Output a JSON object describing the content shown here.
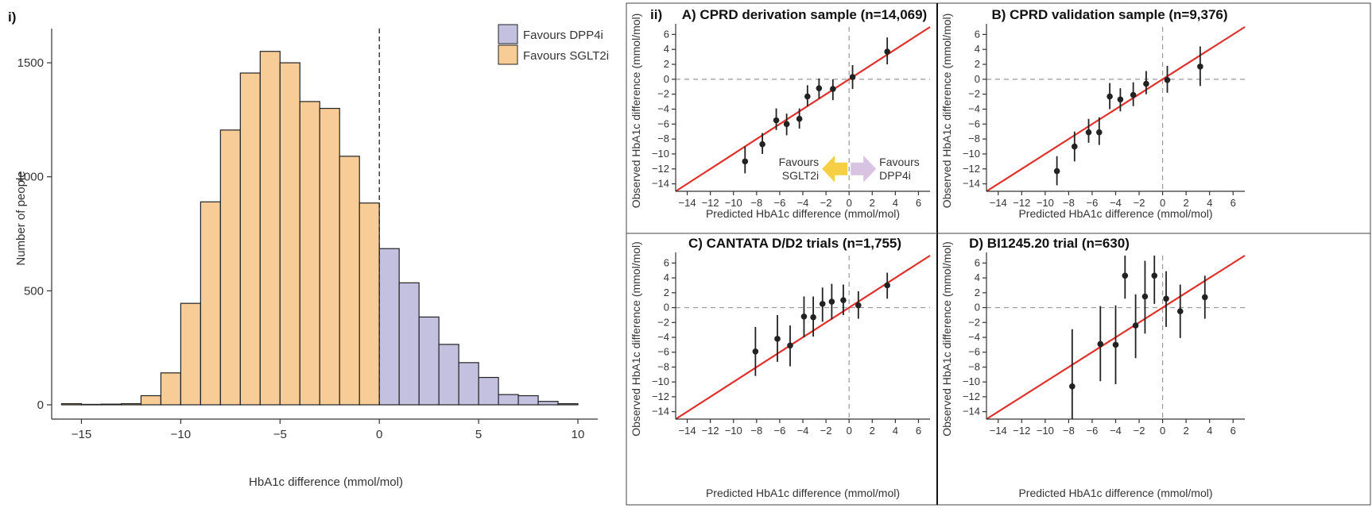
{
  "chart_data": [
    {
      "type": "bar",
      "id": "histogram",
      "panel_label": "i)",
      "xlabel": "HbA1c difference (mmol/mol)",
      "ylabel": "Number of people",
      "xlim": [
        -16.5,
        11
      ],
      "ylim": [
        0,
        1650
      ],
      "xticks": [
        -15,
        -10,
        -5,
        0,
        5,
        10
      ],
      "yticks": [
        0,
        500,
        1000,
        1500
      ],
      "bin_width": 1,
      "reference_line_x": 0,
      "colors": {
        "favours_sglt2i": "#f8cc96",
        "favours_dpp4i": "#c3c0e0",
        "edge": "#222222"
      },
      "legend": [
        {
          "label": "Favours DPP4i",
          "color": "#c3c0e0"
        },
        {
          "label": "Favours SGLT2i",
          "color": "#f8cc96"
        }
      ],
      "legend_position": "top-right",
      "bins": [
        {
          "x0": -16,
          "x1": -15,
          "value": 5,
          "group": "sglt2i"
        },
        {
          "x0": -15,
          "x1": -14,
          "value": 2,
          "group": "sglt2i"
        },
        {
          "x0": -14,
          "x1": -13,
          "value": 3,
          "group": "sglt2i"
        },
        {
          "x0": -13,
          "x1": -12,
          "value": 5,
          "group": "sglt2i"
        },
        {
          "x0": -12,
          "x1": -11,
          "value": 40,
          "group": "sglt2i"
        },
        {
          "x0": -11,
          "x1": -10,
          "value": 140,
          "group": "sglt2i"
        },
        {
          "x0": -10,
          "x1": -9,
          "value": 445,
          "group": "sglt2i"
        },
        {
          "x0": -9,
          "x1": -8,
          "value": 890,
          "group": "sglt2i"
        },
        {
          "x0": -8,
          "x1": -7,
          "value": 1205,
          "group": "sglt2i"
        },
        {
          "x0": -7,
          "x1": -6,
          "value": 1455,
          "group": "sglt2i"
        },
        {
          "x0": -6,
          "x1": -5,
          "value": 1550,
          "group": "sglt2i"
        },
        {
          "x0": -5,
          "x1": -4,
          "value": 1500,
          "group": "sglt2i"
        },
        {
          "x0": -4,
          "x1": -3,
          "value": 1330,
          "group": "sglt2i"
        },
        {
          "x0": -3,
          "x1": -2,
          "value": 1300,
          "group": "sglt2i"
        },
        {
          "x0": -2,
          "x1": -1,
          "value": 1090,
          "group": "sglt2i"
        },
        {
          "x0": -1,
          "x1": 0,
          "value": 885,
          "group": "sglt2i"
        },
        {
          "x0": 0,
          "x1": 1,
          "value": 685,
          "group": "dpp4i"
        },
        {
          "x0": 1,
          "x1": 2,
          "value": 535,
          "group": "dpp4i"
        },
        {
          "x0": 2,
          "x1": 3,
          "value": 385,
          "group": "dpp4i"
        },
        {
          "x0": 3,
          "x1": 4,
          "value": 265,
          "group": "dpp4i"
        },
        {
          "x0": 4,
          "x1": 5,
          "value": 185,
          "group": "dpp4i"
        },
        {
          "x0": 5,
          "x1": 6,
          "value": 120,
          "group": "dpp4i"
        },
        {
          "x0": 6,
          "x1": 7,
          "value": 45,
          "group": "dpp4i"
        },
        {
          "x0": 7,
          "x1": 8,
          "value": 40,
          "group": "dpp4i"
        },
        {
          "x0": 8,
          "x1": 9,
          "value": 15,
          "group": "dpp4i"
        },
        {
          "x0": 9,
          "x1": 10,
          "value": 5,
          "group": "dpp4i"
        }
      ]
    },
    {
      "type": "scatter",
      "id": "panel-a",
      "panel_label": "ii)",
      "title": "A) CPRD derivation sample (n=14,069)",
      "xlabel": "Predicted HbA1c difference (mmol/mol)",
      "ylabel": "Observed HbA1c difference (mmol/mol)",
      "xlim": [
        -15,
        7
      ],
      "ylim": [
        -15,
        7
      ],
      "ticks": [
        -14,
        -12,
        -10,
        -8,
        -6,
        -4,
        -2,
        0,
        2,
        4,
        6
      ],
      "identity_line": true,
      "annotation": {
        "left_label": [
          "Favours",
          "SGLT2i"
        ],
        "right_label": [
          "Favours",
          "DPP4i"
        ],
        "left_color": "#f6cf45",
        "right_color": "#d8c4e2"
      },
      "points": [
        {
          "x": -9.0,
          "y": -11.0,
          "lo": -12.6,
          "hi": -9.0
        },
        {
          "x": -7.5,
          "y": -8.7,
          "lo": -10.0,
          "hi": -7.2
        },
        {
          "x": -6.3,
          "y": -5.5,
          "lo": -6.8,
          "hi": -3.9
        },
        {
          "x": -5.4,
          "y": -6.0,
          "lo": -7.5,
          "hi": -4.6
        },
        {
          "x": -4.3,
          "y": -5.3,
          "lo": -6.6,
          "hi": -3.9
        },
        {
          "x": -3.6,
          "y": -2.3,
          "lo": -3.6,
          "hi": -0.8
        },
        {
          "x": -2.6,
          "y": -1.2,
          "lo": -2.6,
          "hi": 0.1
        },
        {
          "x": -1.4,
          "y": -1.3,
          "lo": -2.8,
          "hi": 0.0
        },
        {
          "x": 0.3,
          "y": 0.3,
          "lo": -1.3,
          "hi": 1.9
        },
        {
          "x": 3.3,
          "y": 3.7,
          "lo": 2.0,
          "hi": 5.6
        }
      ]
    },
    {
      "type": "scatter",
      "id": "panel-b",
      "title": "B) CPRD validation sample (n=9,376)",
      "xlabel": "Predicted HbA1c difference (mmol/mol)",
      "ylabel": "Observed HbA1c difference (mmol/mol)",
      "xlim": [
        -15,
        7
      ],
      "ylim": [
        -15,
        7
      ],
      "ticks": [
        -14,
        -12,
        -10,
        -8,
        -6,
        -4,
        -2,
        0,
        2,
        4,
        6
      ],
      "identity_line": true,
      "points": [
        {
          "x": -9.0,
          "y": -12.3,
          "lo": -14.2,
          "hi": -10.3
        },
        {
          "x": -7.5,
          "y": -9.0,
          "lo": -11.0,
          "hi": -7.0
        },
        {
          "x": -6.3,
          "y": -7.1,
          "lo": -8.5,
          "hi": -5.3
        },
        {
          "x": -5.4,
          "y": -7.1,
          "lo": -8.8,
          "hi": -5.1
        },
        {
          "x": -4.5,
          "y": -2.3,
          "lo": -4.0,
          "hi": -0.5
        },
        {
          "x": -3.6,
          "y": -2.7,
          "lo": -4.3,
          "hi": -1.2
        },
        {
          "x": -2.5,
          "y": -2.1,
          "lo": -3.6,
          "hi": -0.4
        },
        {
          "x": -1.4,
          "y": -0.6,
          "lo": -2.0,
          "hi": 1.1
        },
        {
          "x": 0.4,
          "y": -0.1,
          "lo": -1.8,
          "hi": 1.8
        },
        {
          "x": 3.2,
          "y": 1.7,
          "lo": -0.9,
          "hi": 4.4
        }
      ]
    },
    {
      "type": "scatter",
      "id": "panel-c",
      "title": "C) CANTATA D/D2 trials (n=1,755)",
      "xlabel": "Predicted HbA1c difference (mmol/mol)",
      "ylabel": "Observed HbA1c difference (mmol/mol)",
      "xlim": [
        -15,
        7
      ],
      "ylim": [
        -15,
        7
      ],
      "ticks": [
        -14,
        -12,
        -10,
        -8,
        -6,
        -4,
        -2,
        0,
        2,
        4,
        6
      ],
      "identity_line": true,
      "points": [
        {
          "x": -8.1,
          "y": -5.9,
          "lo": -9.2,
          "hi": -2.6
        },
        {
          "x": -6.2,
          "y": -4.2,
          "lo": -7.3,
          "hi": -1.0
        },
        {
          "x": -5.1,
          "y": -5.1,
          "lo": -7.9,
          "hi": -2.4
        },
        {
          "x": -3.9,
          "y": -1.2,
          "lo": -4.0,
          "hi": 1.5
        },
        {
          "x": -3.1,
          "y": -1.3,
          "lo": -3.9,
          "hi": 1.5
        },
        {
          "x": -2.3,
          "y": 0.5,
          "lo": -1.9,
          "hi": 2.7
        },
        {
          "x": -1.5,
          "y": 0.8,
          "lo": -1.6,
          "hi": 3.2
        },
        {
          "x": -0.5,
          "y": 1.0,
          "lo": -1.0,
          "hi": 3.1
        },
        {
          "x": 0.8,
          "y": 0.3,
          "lo": -1.5,
          "hi": 2.2
        },
        {
          "x": 3.3,
          "y": 3.0,
          "lo": 1.2,
          "hi": 4.7
        }
      ]
    },
    {
      "type": "scatter",
      "id": "panel-d",
      "title": "D) BI1245.20 trial (n=630)",
      "xlabel": "Predicted HbA1c difference (mmol/mol)",
      "ylabel": "Observed HbA1c difference (mmol/mol)",
      "xlim": [
        -15,
        7
      ],
      "ylim": [
        -15,
        7
      ],
      "ticks": [
        -14,
        -12,
        -10,
        -8,
        -6,
        -4,
        -2,
        0,
        2,
        4,
        6
      ],
      "identity_line": true,
      "points": [
        {
          "x": -7.7,
          "y": -10.6,
          "lo": -15.0,
          "hi": -2.9
        },
        {
          "x": -5.3,
          "y": -4.9,
          "lo": -9.9,
          "hi": 0.2
        },
        {
          "x": -4.0,
          "y": -5.0,
          "lo": -10.3,
          "hi": 0.3
        },
        {
          "x": -3.2,
          "y": 4.3,
          "lo": 1.2,
          "hi": 7.0
        },
        {
          "x": -2.3,
          "y": -2.4,
          "lo": -6.8,
          "hi": 1.8
        },
        {
          "x": -1.5,
          "y": 1.5,
          "lo": -3.5,
          "hi": 6.3
        },
        {
          "x": -0.7,
          "y": 4.3,
          "lo": 0.5,
          "hi": 7.0
        },
        {
          "x": 0.3,
          "y": 1.2,
          "lo": -2.6,
          "hi": 4.9
        },
        {
          "x": 1.5,
          "y": -0.5,
          "lo": -4.1,
          "hi": 3.1
        },
        {
          "x": 3.6,
          "y": 1.4,
          "lo": -1.5,
          "hi": 4.3
        }
      ]
    }
  ]
}
